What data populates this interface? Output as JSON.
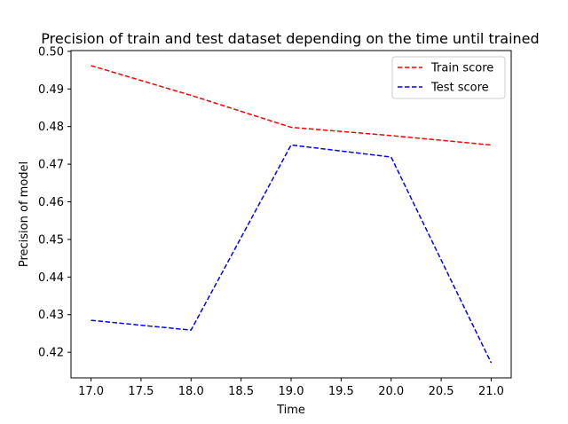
{
  "chart_data": {
    "type": "line",
    "title": "Precision of train and test dataset depending on the time until trained",
    "xlabel": "Time",
    "ylabel": "Precision of model",
    "xlim": [
      16.8,
      21.2
    ],
    "ylim": [
      0.4132,
      0.5002
    ],
    "xticks": [
      "17.0",
      "17.5",
      "18.0",
      "18.5",
      "19.0",
      "19.5",
      "20.0",
      "20.5",
      "21.0"
    ],
    "yticks": [
      "0.42",
      "0.43",
      "0.44",
      "0.45",
      "0.46",
      "0.47",
      "0.48",
      "0.49",
      "0.50"
    ],
    "x": [
      17,
      18,
      19,
      20,
      21
    ],
    "series": [
      {
        "name": "Train score",
        "color": "#ff0000",
        "linestyle": "dashed",
        "values": [
          0.4962,
          0.4883,
          0.4798,
          0.4776,
          0.4751
        ]
      },
      {
        "name": "Test score",
        "color": "#0000ff",
        "linestyle": "dashed",
        "values": [
          0.4285,
          0.4259,
          0.4751,
          0.4719,
          0.4172
        ]
      }
    ],
    "grid": false,
    "legend": "top-right"
  }
}
